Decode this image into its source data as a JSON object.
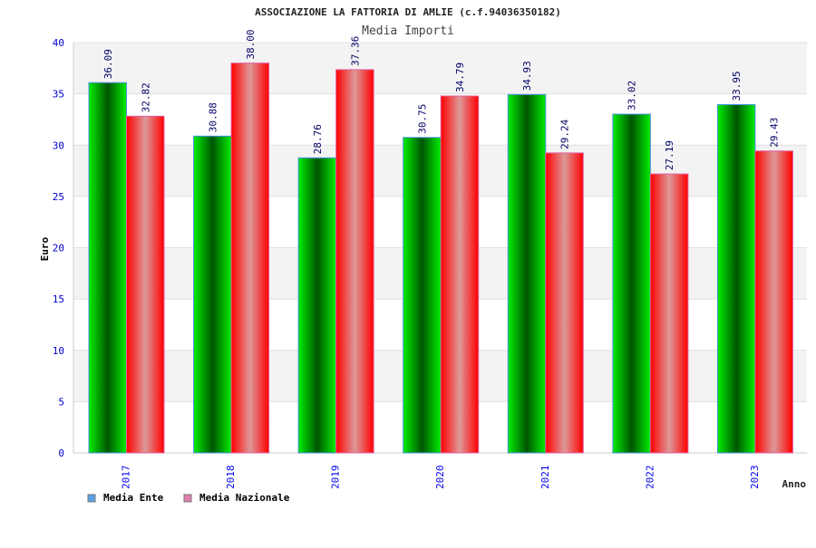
{
  "chart_data": {
    "type": "bar",
    "title": "ASSOCIAZIONE LA FATTORIA DI AMLIE (c.f.94036350182)",
    "subtitle": "Media Importi",
    "xlabel": "Anno",
    "ylabel": "Euro",
    "ylim": [
      0,
      40
    ],
    "yticks": [
      0,
      5,
      10,
      15,
      20,
      25,
      30,
      35,
      40
    ],
    "grid": true,
    "legend_position": "bottom-left",
    "categories": [
      "2017",
      "2018",
      "2019",
      "2020",
      "2021",
      "2022",
      "2023"
    ],
    "series": [
      {
        "name": "Media Ente",
        "color": "#00cc00",
        "legend_color": "#5aa0e8",
        "values": [
          36.09,
          30.88,
          28.76,
          30.75,
          34.93,
          33.02,
          33.95
        ],
        "labels": [
          "36.09",
          "30.88",
          "28.76",
          "30.75",
          "34.93",
          "33.02",
          "33.95"
        ]
      },
      {
        "name": "Media Nazionale",
        "color": "#ff1010",
        "legend_color": "#e080b0",
        "values": [
          32.82,
          38.0,
          37.36,
          34.79,
          29.24,
          27.19,
          29.43
        ],
        "labels": [
          "32.82",
          "38.00",
          "37.36",
          "34.79",
          "29.24",
          "27.19",
          "29.43"
        ]
      }
    ]
  }
}
